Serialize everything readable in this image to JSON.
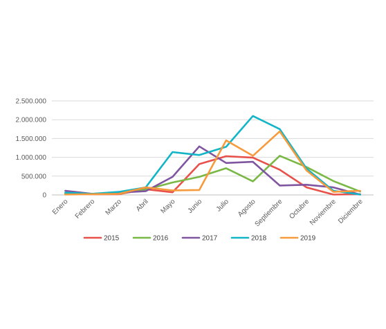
{
  "chart_data": {
    "type": "line",
    "title": "",
    "xlabel": "",
    "ylabel": "",
    "categories": [
      "Enero",
      "Febrero",
      "Marzo",
      "Abril",
      "Mayo",
      "Junio",
      "Julio",
      "Agosto",
      "Septiembre",
      "Octubre",
      "Noviembre",
      "Diciembre"
    ],
    "ylim": [
      0,
      2500000
    ],
    "yticks": [
      0,
      500000,
      1000000,
      1500000,
      2000000,
      2500000
    ],
    "ytick_labels": [
      "0",
      "500.000",
      "1.000.000",
      "1.500.000",
      "2.000.000",
      "2.500.000"
    ],
    "grid": true,
    "legend_position": "bottom",
    "series": [
      {
        "name": "2015",
        "color": "#e8504a",
        "values": [
          30000,
          20000,
          20000,
          150000,
          70000,
          820000,
          1030000,
          990000,
          670000,
          200000,
          10000,
          20000
        ]
      },
      {
        "name": "2016",
        "color": "#79b845",
        "values": [
          40000,
          30000,
          40000,
          140000,
          330000,
          480000,
          710000,
          360000,
          1040000,
          740000,
          370000,
          90000
        ]
      },
      {
        "name": "2017",
        "color": "#8055a0",
        "values": [
          110000,
          30000,
          60000,
          100000,
          480000,
          1290000,
          850000,
          880000,
          250000,
          270000,
          200000,
          10000
        ]
      },
      {
        "name": "2018",
        "color": "#12b5c6",
        "values": [
          60000,
          30000,
          80000,
          200000,
          1140000,
          1060000,
          1280000,
          2100000,
          1750000,
          700000,
          110000,
          10000
        ]
      },
      {
        "name": "2019",
        "color": "#f79a3c",
        "values": [
          10000,
          20000,
          30000,
          200000,
          120000,
          130000,
          1450000,
          1040000,
          1690000,
          650000,
          80000,
          110000
        ]
      }
    ]
  }
}
